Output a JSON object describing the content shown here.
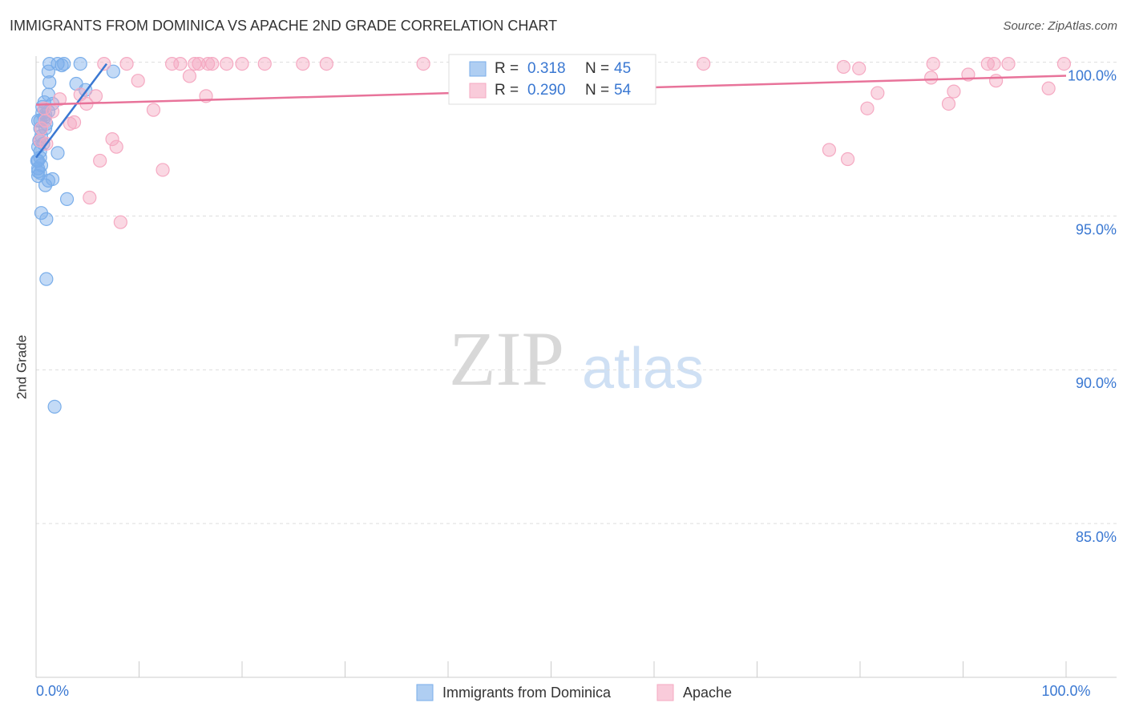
{
  "chart_data": {
    "type": "scatter",
    "title": "IMMIGRANTS FROM DOMINICA VS APACHE 2ND GRADE CORRELATION CHART",
    "source": "Source: ZipAtlas.com",
    "watermark": [
      "ZIP",
      "atlas"
    ],
    "ylabel": "2nd Grade",
    "xlim": [
      0,
      100
    ],
    "ylim": [
      80,
      100.2
    ],
    "xticks": [
      {
        "value": 0,
        "label": "0.0%"
      },
      {
        "value": 100,
        "label": "100.0%"
      }
    ],
    "xminorticks": [
      10,
      20,
      30,
      40,
      50,
      60,
      70,
      80,
      90
    ],
    "yticks": [
      {
        "value": 100,
        "label": "100.0%"
      },
      {
        "value": 95,
        "label": "95.0%"
      },
      {
        "value": 90,
        "label": "90.0%"
      },
      {
        "value": 85,
        "label": "85.0%"
      }
    ],
    "grid": true,
    "legend": {
      "r_label": "R =",
      "n_label": "N ="
    },
    "series": [
      {
        "name": "Immigrants from Dominica",
        "color": "#7aaeea",
        "line_color": "#3a78d2",
        "r": "0.318",
        "n": "45",
        "x": [
          1.3,
          2.1,
          2.7,
          4.3,
          2.5,
          1.2,
          1.3,
          3.9,
          4.8,
          7.5,
          1.2,
          0.8,
          1.6,
          0.6,
          0.9,
          0.8,
          0.4,
          1.0,
          0.7,
          0.2,
          0.4,
          2.1,
          0.4,
          0.2,
          0.2,
          0.4,
          0.2,
          1.6,
          1.2,
          0.9,
          3.0,
          0.5,
          1.0,
          1.0,
          1.8,
          0.2,
          0.9,
          0.5,
          0.3,
          0.1,
          0.5,
          0.2,
          0.6,
          0.4,
          1.2
        ],
        "y": [
          99.95,
          99.95,
          99.95,
          99.95,
          99.9,
          99.7,
          99.35,
          99.3,
          99.1,
          99.7,
          98.95,
          98.7,
          98.65,
          98.55,
          98.3,
          98.2,
          98.1,
          98.0,
          97.35,
          97.25,
          97.1,
          97.05,
          96.9,
          96.8,
          96.55,
          96.4,
          96.3,
          96.2,
          96.15,
          96.0,
          95.55,
          95.1,
          94.9,
          92.95,
          88.8,
          98.1,
          97.85,
          97.6,
          97.45,
          96.8,
          96.65,
          96.45,
          98.35,
          97.85,
          98.4
        ],
        "trend": {
          "x": [
            0,
            6.85
          ],
          "y": [
            96.9,
            99.95
          ]
        }
      },
      {
        "name": "Apache",
        "color": "#f5a9c2",
        "line_color": "#e8739a",
        "r": "0.290",
        "n": "54",
        "x": [
          6.6,
          8.8,
          13.2,
          14.0,
          15.4,
          15.8,
          16.7,
          17.1,
          18.5,
          20.0,
          22.2,
          25.9,
          28.2,
          37.6,
          64.8,
          87.1,
          92.4,
          93.0,
          94.4,
          99.8,
          78.4,
          79.9,
          90.5,
          86.9,
          93.2,
          14.9,
          9.9,
          98.3,
          81.7,
          89.1,
          5.8,
          88.6,
          80.7,
          4.9,
          11.4,
          3.7,
          3.3,
          7.4,
          7.8,
          6.2,
          12.3,
          5.2,
          8.2,
          77.0,
          78.8,
          0.8,
          1.6,
          0.5,
          0.9,
          0.4,
          2.3,
          1.0,
          16.5,
          4.3
        ],
        "y": [
          99.95,
          99.95,
          99.95,
          99.95,
          99.95,
          99.95,
          99.95,
          99.95,
          99.95,
          99.95,
          99.95,
          99.95,
          99.95,
          99.95,
          99.95,
          99.95,
          99.95,
          99.95,
          99.95,
          99.95,
          99.85,
          99.8,
          99.6,
          99.5,
          99.4,
          99.55,
          99.4,
          99.15,
          99.0,
          99.05,
          98.9,
          98.65,
          98.5,
          98.65,
          98.45,
          98.05,
          98.0,
          97.5,
          97.25,
          96.8,
          96.5,
          95.6,
          94.8,
          97.15,
          96.85,
          98.5,
          98.4,
          97.85,
          98.1,
          97.45,
          98.8,
          97.35,
          98.9,
          98.95
        ],
        "trend": {
          "x": [
            0,
            100
          ],
          "y": [
            98.62,
            99.56
          ]
        }
      }
    ]
  }
}
